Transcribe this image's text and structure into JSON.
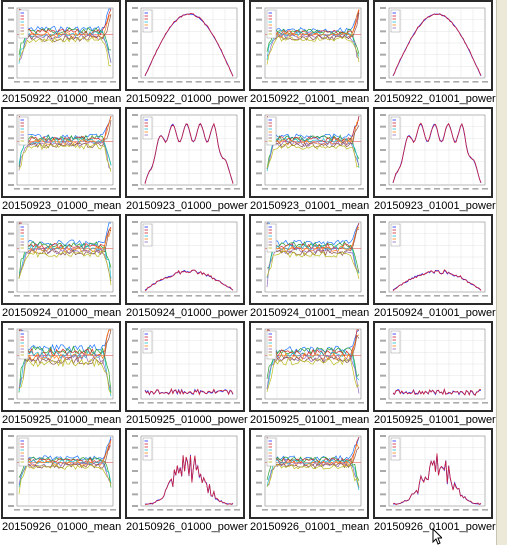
{
  "rows": [
    {
      "date": "20150922",
      "items": [
        {
          "label": "20150922_01000_mean",
          "kind": "mean",
          "level": 1.0
        },
        {
          "label": "20150922_01000_power",
          "kind": "power",
          "level": 1.0,
          "shape": "arc"
        },
        {
          "label": "20150922_01001_mean",
          "kind": "mean",
          "level": 0.8
        },
        {
          "label": "20150922_01001_power",
          "kind": "power",
          "level": 1.0,
          "shape": "arc"
        }
      ]
    },
    {
      "date": "20150923",
      "items": [
        {
          "label": "20150923_01000_mean",
          "kind": "mean",
          "level": 0.9
        },
        {
          "label": "20150923_01000_power",
          "kind": "power",
          "level": 0.95,
          "shape": "plateau"
        },
        {
          "label": "20150923_01001_mean",
          "kind": "mean",
          "level": 0.9
        },
        {
          "label": "20150923_01001_power",
          "kind": "power",
          "level": 0.95,
          "shape": "plateau"
        }
      ]
    },
    {
      "date": "20150924",
      "items": [
        {
          "label": "20150924_01000_mean",
          "kind": "mean",
          "level": 1.0
        },
        {
          "label": "20150924_01000_power",
          "kind": "power",
          "level": 0.3,
          "shape": "low"
        },
        {
          "label": "20150924_01001_mean",
          "kind": "mean",
          "level": 1.0
        },
        {
          "label": "20150924_01001_power",
          "kind": "power",
          "level": 0.3,
          "shape": "low"
        }
      ]
    },
    {
      "date": "20150925",
      "items": [
        {
          "label": "20150925_01000_mean",
          "kind": "mean",
          "level": 1.3
        },
        {
          "label": "20150925_01000_power",
          "kind": "power",
          "level": 0.12,
          "shape": "flat"
        },
        {
          "label": "20150925_01001_mean",
          "kind": "mean",
          "level": 1.1
        },
        {
          "label": "20150925_01001_power",
          "kind": "power",
          "level": 0.12,
          "shape": "flat"
        }
      ]
    },
    {
      "date": "20150926",
      "items": [
        {
          "label": "20150926_01000_mean",
          "kind": "mean",
          "level": 0.8
        },
        {
          "label": "20150926_01000_power",
          "kind": "power",
          "level": 0.85,
          "shape": "spike"
        },
        {
          "label": "20150926_01001_mean",
          "kind": "mean",
          "level": 0.8
        },
        {
          "label": "20150926_01001_power",
          "kind": "power",
          "level": 0.85,
          "shape": "spike"
        }
      ]
    }
  ],
  "colors": {
    "series": [
      "#1f77ff",
      "#2ca02c",
      "#d62728",
      "#17becf",
      "#ff7f0e",
      "#9467bd",
      "#8c564b",
      "#bcbd22"
    ],
    "power": [
      "#1a2bff",
      "#cc1f3a"
    ],
    "refline": "#e87a7a",
    "grid": "#dcdcdc"
  }
}
